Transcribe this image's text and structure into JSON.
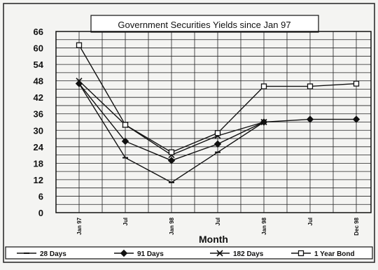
{
  "chart_data": {
    "type": "line",
    "title": "Government Securities Yields since Jan 97",
    "xlabel": "Month",
    "ylabel": "",
    "ylim": [
      0,
      66
    ],
    "yticks": [
      0,
      6,
      12,
      18,
      24,
      30,
      36,
      42,
      48,
      54,
      60,
      66
    ],
    "categories": [
      "Jan 97",
      "Jul",
      "Jan 98",
      "Jul",
      "Jan 98",
      "Jul",
      "Dec 98"
    ],
    "grid": true,
    "legend_position": "bottom",
    "series": [
      {
        "name": "28 Days",
        "marker": "dash",
        "values": [
          47,
          20,
          11,
          22,
          33,
          null,
          null
        ]
      },
      {
        "name": "91 Days",
        "marker": "diamond",
        "values": [
          47,
          26,
          19,
          25,
          33,
          34,
          34
        ]
      },
      {
        "name": "182 Days",
        "marker": "x",
        "values": [
          48,
          32,
          21,
          28,
          33,
          null,
          null
        ]
      },
      {
        "name": "1 Year Bond",
        "marker": "square",
        "values": [
          61,
          32,
          22,
          29,
          46,
          46,
          47
        ]
      }
    ]
  },
  "colors": {
    "line": "#111111",
    "grid": "#222222",
    "background": "#f4f4f2"
  }
}
